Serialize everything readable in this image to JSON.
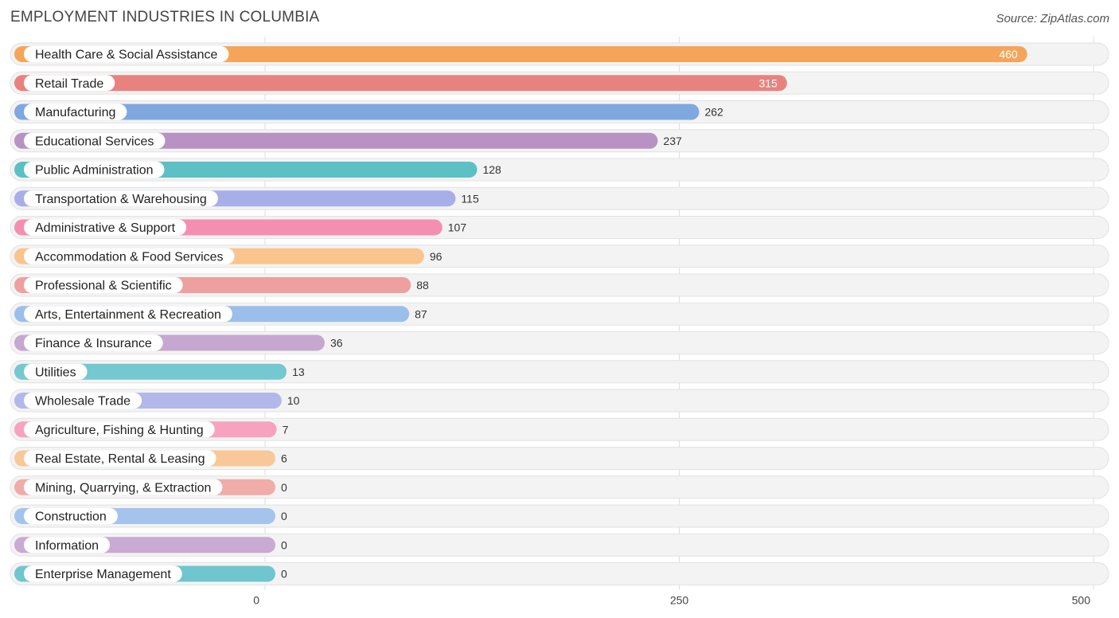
{
  "header": {
    "title": "EMPLOYMENT INDUSTRIES IN COLUMBIA",
    "source": "Source: ZipAtlas.com"
  },
  "chart_data": {
    "type": "bar",
    "orientation": "horizontal",
    "title": "EMPLOYMENT INDUSTRIES IN COLUMBIA",
    "xlabel": "",
    "ylabel": "",
    "xlim": [
      0,
      500
    ],
    "x_ticks": [
      0,
      250,
      500
    ],
    "grid": true,
    "categories": [
      "Health Care & Social Assistance",
      "Retail Trade",
      "Manufacturing",
      "Educational Services",
      "Public Administration",
      "Transportation & Warehousing",
      "Administrative & Support",
      "Accommodation & Food Services",
      "Professional & Scientific",
      "Arts, Entertainment & Recreation",
      "Finance & Insurance",
      "Utilities",
      "Wholesale Trade",
      "Agriculture, Fishing & Hunting",
      "Real Estate, Rental & Leasing",
      "Mining, Quarrying, & Extraction",
      "Construction",
      "Information",
      "Enterprise Management"
    ],
    "values": [
      460,
      315,
      262,
      237,
      128,
      115,
      107,
      96,
      88,
      87,
      36,
      13,
      10,
      7,
      6,
      0,
      0,
      0,
      0
    ],
    "colors": [
      "#f5a55a",
      "#e8827e",
      "#7fa8e0",
      "#b892c4",
      "#5cc0c4",
      "#a8aee8",
      "#f48fb1",
      "#f9c48e",
      "#eda09e",
      "#9bbfea",
      "#c6a7cf",
      "#74c8d0",
      "#b2b8ea",
      "#f7a3c0",
      "#f9c898",
      "#f0aca8",
      "#a4c4ee",
      "#c8aad2",
      "#70c6ce"
    ]
  }
}
